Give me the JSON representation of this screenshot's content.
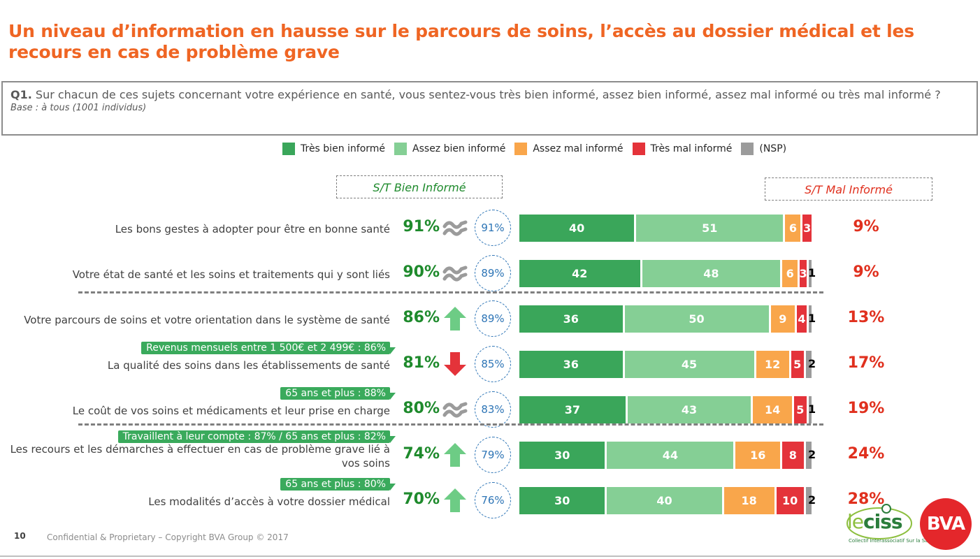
{
  "title": "Un niveau d’information en hausse sur le parcours de soins, l’accès au dossier médical et les recours en cas de problème grave",
  "question": {
    "number": "Q1.",
    "text": "Sur chacun de ces sujets concernant votre expérience en santé, vous sentez-vous très bien informé, assez bien informé, assez mal informé ou très mal informé ?",
    "base": "Base : à tous (1001 individus)"
  },
  "legend": [
    {
      "label": "Très bien informé",
      "color": "#3aa65a"
    },
    {
      "label": "Assez bien informé",
      "color": "#85cf95"
    },
    {
      "label": "Assez mal informé",
      "color": "#f9a64b"
    },
    {
      "label": "Très mal informé",
      "color": "#e4333a"
    },
    {
      "label": "(NSP)",
      "color": "#9b9b9b"
    }
  ],
  "st_bien_label": "S/T Bien Informé",
  "st_mal_label": "S/T Mal Informé",
  "footer": {
    "page_number": "10",
    "copyright": "Confidential & Proprietary – Copyright BVA Group ©  2017",
    "logo_leciss": "leciss",
    "logo_leciss_sub": "Collectif Interassociatif Sur la Santé",
    "logo_bva": "BVA"
  },
  "chart_data": {
    "type": "bar",
    "orientation": "horizontal",
    "stacked": true,
    "xlim": [
      0,
      100
    ],
    "series_names": [
      "Très bien informé",
      "Assez bien informé",
      "Assez mal informé",
      "Très mal informé",
      "(NSP)"
    ],
    "rows": [
      {
        "label": "Les bons gestes à adopter pour être en bonne santé",
        "st_bien": "91%",
        "trend": "stable",
        "previous": "91%",
        "values": [
          40,
          51,
          6,
          3,
          0
        ],
        "labels": [
          "40",
          "51",
          "6",
          "3",
          ""
        ],
        "nsp_label": "",
        "st_mal": "9%",
        "tag": ""
      },
      {
        "label": "Votre état de santé et les soins et traitements qui y sont liés",
        "st_bien": "90%",
        "trend": "stable",
        "previous": "89%",
        "values": [
          42,
          48,
          6,
          3,
          1
        ],
        "labels": [
          "42",
          "48",
          "6",
          "3",
          ""
        ],
        "nsp_label": "1",
        "st_mal": "9%",
        "tag": ""
      },
      {
        "label": "Votre parcours de soins et votre orientation dans le système de santé",
        "st_bien": "86%",
        "trend": "up",
        "previous": "89%",
        "values": [
          36,
          50,
          9,
          4,
          1
        ],
        "labels": [
          "36",
          "50",
          "9",
          "4",
          ""
        ],
        "nsp_label": "1",
        "st_mal": "13%",
        "tag": ""
      },
      {
        "label": "La qualité des soins dans les établissements de santé",
        "st_bien": "81%",
        "trend": "down",
        "previous": "85%",
        "values": [
          36,
          45,
          12,
          5,
          2
        ],
        "labels": [
          "36",
          "45",
          "12",
          "5",
          ""
        ],
        "nsp_label": "2",
        "st_mal": "17%",
        "tag": "Revenus mensuels entre 1 500€ et 2 499€ : 86%"
      },
      {
        "label": "Le coût de vos soins et médicaments et leur prise en charge",
        "st_bien": "80%",
        "trend": "stable",
        "previous": "83%",
        "values": [
          37,
          43,
          14,
          5,
          1
        ],
        "labels": [
          "37",
          "43",
          "14",
          "5",
          ""
        ],
        "nsp_label": "1",
        "st_mal": "19%",
        "tag": "65 ans et plus : 88%"
      },
      {
        "label": "Les recours et les démarches à effectuer en cas de problème grave lié à vos soins",
        "st_bien": "74%",
        "trend": "up",
        "previous": "79%",
        "values": [
          30,
          44,
          16,
          8,
          2
        ],
        "labels": [
          "30",
          "44",
          "16",
          "8",
          ""
        ],
        "nsp_label": "2",
        "st_mal": "24%",
        "tag": "Travaillent à leur compte : 87% / 65 ans et plus : 82%"
      },
      {
        "label": "Les modalités d’accès à votre dossier médical",
        "st_bien": "70%",
        "trend": "up",
        "previous": "76%",
        "values": [
          30,
          40,
          18,
          10,
          2
        ],
        "labels": [
          "30",
          "40",
          "18",
          "10",
          ""
        ],
        "nsp_label": "2",
        "st_mal": "28%",
        "tag": "65 ans et plus : 80%"
      }
    ]
  }
}
